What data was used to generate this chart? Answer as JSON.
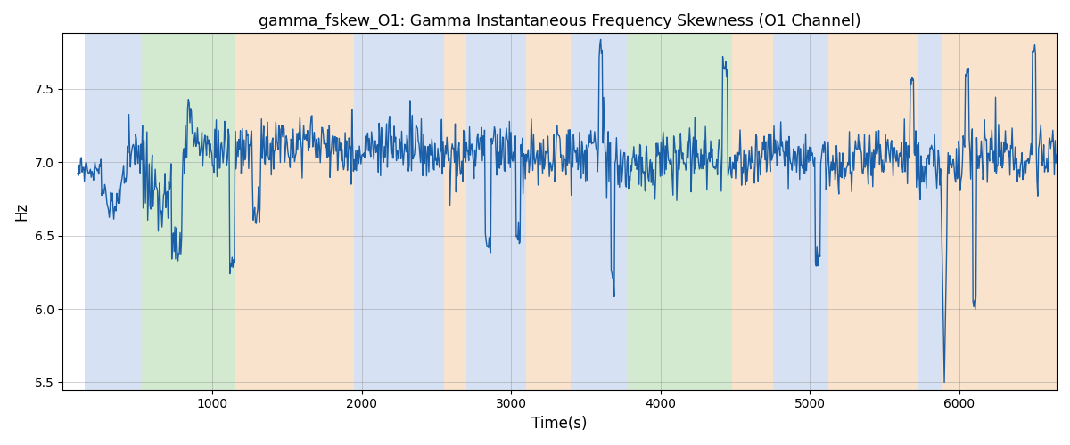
{
  "title": "gamma_fskew_O1: Gamma Instantaneous Frequency Skewness (O1 Channel)",
  "xlabel": "Time(s)",
  "ylabel": "Hz",
  "xlim": [
    0,
    6650
  ],
  "ylim": [
    5.45,
    7.88
  ],
  "yticks": [
    5.5,
    6.0,
    6.5,
    7.0,
    7.5
  ],
  "xticks": [
    1000,
    2000,
    3000,
    4000,
    5000,
    6000
  ],
  "line_color": "#1a5fa8",
  "line_width": 1.0,
  "bg_bands": [
    {
      "xmin": 150,
      "xmax": 530,
      "color": "#aec6e8",
      "alpha": 0.5
    },
    {
      "xmin": 530,
      "xmax": 1150,
      "color": "#a8d5a2",
      "alpha": 0.5
    },
    {
      "xmin": 1150,
      "xmax": 1950,
      "color": "#f5c99a",
      "alpha": 0.5
    },
    {
      "xmin": 1950,
      "xmax": 2550,
      "color": "#aec6e8",
      "alpha": 0.5
    },
    {
      "xmin": 2550,
      "xmax": 2700,
      "color": "#f5c99a",
      "alpha": 0.5
    },
    {
      "xmin": 2700,
      "xmax": 3100,
      "color": "#aec6e8",
      "alpha": 0.5
    },
    {
      "xmin": 3100,
      "xmax": 3400,
      "color": "#f5c99a",
      "alpha": 0.5
    },
    {
      "xmin": 3400,
      "xmax": 3780,
      "color": "#aec6e8",
      "alpha": 0.5
    },
    {
      "xmin": 3780,
      "xmax": 4480,
      "color": "#a8d5a2",
      "alpha": 0.5
    },
    {
      "xmin": 4480,
      "xmax": 4750,
      "color": "#f5c99a",
      "alpha": 0.5
    },
    {
      "xmin": 4750,
      "xmax": 5120,
      "color": "#aec6e8",
      "alpha": 0.5
    },
    {
      "xmin": 5120,
      "xmax": 5720,
      "color": "#f5c99a",
      "alpha": 0.5
    },
    {
      "xmin": 5720,
      "xmax": 5880,
      "color": "#aec6e8",
      "alpha": 0.5
    },
    {
      "xmin": 5880,
      "xmax": 6650,
      "color": "#f5c99a",
      "alpha": 0.5
    }
  ]
}
